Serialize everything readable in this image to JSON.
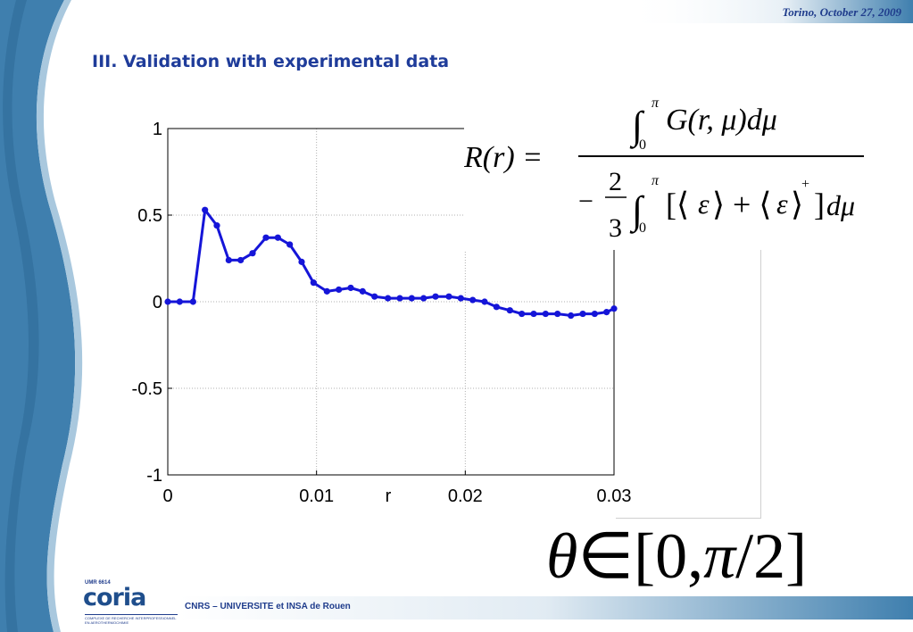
{
  "header": {
    "date": "Torino, October 27, 2009"
  },
  "slide": {
    "title": "III. Validation with experimental data"
  },
  "colors": {
    "series": "#1515d8",
    "title": "#1f3c9a",
    "accent_blue": "#3a78a8"
  },
  "chart_data": {
    "type": "line",
    "title": "",
    "xlabel": "r",
    "ylabel": "",
    "xlim": [
      0,
      0.03
    ],
    "ylim": [
      -1,
      1
    ],
    "grid": true,
    "x_ticks": [
      0,
      0.01,
      0.02,
      0.03
    ],
    "x_tick_labels": [
      "0",
      "0.01",
      "0.02",
      "0.03"
    ],
    "y_ticks": [
      1,
      0.5,
      0,
      -0.5,
      -1
    ],
    "y_tick_labels": [
      "1",
      "0.5",
      "0",
      "-0.5",
      "-1"
    ],
    "series": [
      {
        "x": [
          0,
          0.0008,
          0.0017,
          0.0025,
          0.0033,
          0.0041,
          0.0049,
          0.0057,
          0.0066,
          0.0074,
          0.0082,
          0.009,
          0.0098,
          0.0107,
          0.0115,
          0.0123,
          0.0131,
          0.0139,
          0.0148,
          0.0156,
          0.0164,
          0.0172,
          0.018,
          0.0189,
          0.0197,
          0.0205,
          0.0213,
          0.0221,
          0.023,
          0.0238,
          0.0246,
          0.0254,
          0.0262,
          0.0271,
          0.0279,
          0.0287,
          0.0295,
          0.03
        ],
        "y": [
          0,
          0,
          0,
          0.53,
          0.44,
          0.24,
          0.24,
          0.28,
          0.37,
          0.37,
          0.33,
          0.23,
          0.11,
          0.06,
          0.07,
          0.08,
          0.06,
          0.03,
          0.02,
          0.02,
          0.02,
          0.02,
          0.03,
          0.03,
          0.02,
          0.01,
          0.0,
          -0.03,
          -0.05,
          -0.07,
          -0.07,
          -0.07,
          -0.07,
          -0.08,
          -0.07,
          -0.07,
          -0.06,
          -0.04
        ]
      }
    ]
  },
  "formula": {
    "lhs": "R(r) =",
    "numerator": "∫₀^π G(r, μ)dμ",
    "denominator": "−(2/3) ∫₀^π [⟨ε⟩ + ⟨ε⟩⁺] dμ"
  },
  "theta_range": "θ ∈ [0, π / 2]",
  "logo": {
    "umr": "UMR 6614",
    "name": "coria",
    "subtitle": "COMPLEXE DE RECHERCHE INTERPROFESSIONNEL EN AEROTHERMOCHIMIE"
  },
  "footer": {
    "text": "CNRS – UNIVERSITE et INSA de Rouen"
  }
}
